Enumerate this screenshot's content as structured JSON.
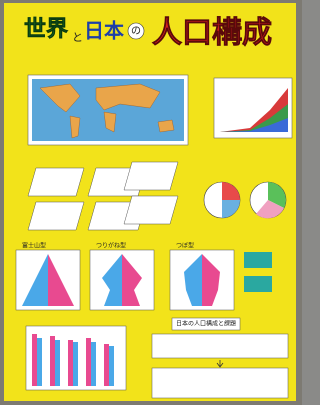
{
  "poster": {
    "title": {
      "part1": "世界",
      "part2": "と",
      "part3": "日本",
      "part4": "の",
      "part5": "人口構成"
    },
    "pyramid_labels": [
      "富士山型",
      "つりがね型",
      "つぼ型"
    ],
    "summary_title": "日本の人口構成と課題"
  }
}
